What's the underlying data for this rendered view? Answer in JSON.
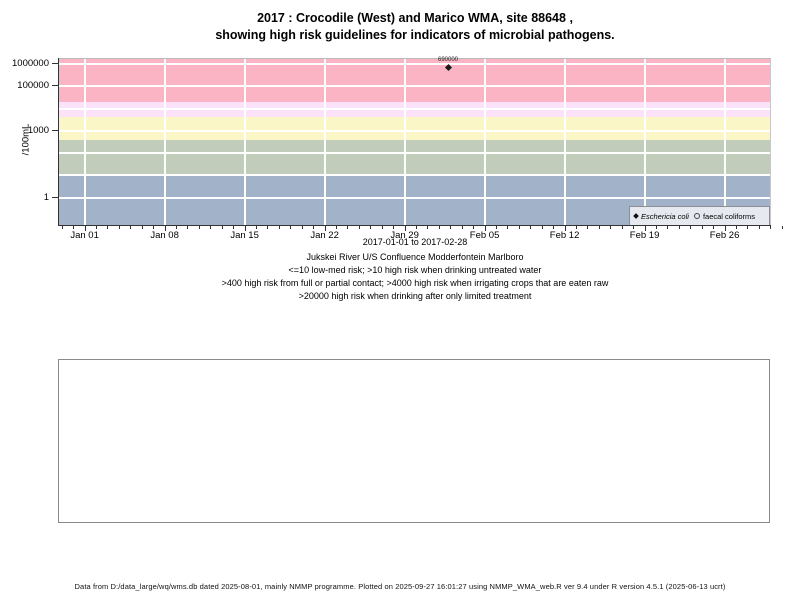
{
  "title": {
    "line1": "2017 : Crocodile (West) and Marico WMA, site 88648 ,",
    "line2": "showing high risk guidelines for indicators of microbial pathogens."
  },
  "chart_data": {
    "type": "scatter",
    "title": "2017 : Crocodile (West) and Marico WMA, site 88648 , showing high risk guidelines for indicators of microbial pathogens.",
    "y_axis": {
      "label": "/100mL",
      "scale": "log10",
      "ticks": [
        1,
        1000,
        100000,
        1000000
      ],
      "tick_labels": [
        "1",
        "1000",
        "100000",
        "1000000"
      ]
    },
    "x_axis": {
      "label": "2017-01-01 to 2017-02-28",
      "tick_labels": [
        "Jan 01",
        "Jan 08",
        "Jan 15",
        "Jan 22",
        "Jan 29",
        "Feb 05",
        "Feb 12",
        "Feb 19",
        "Feb 26"
      ],
      "minor_tick_interval_days": 1,
      "major_tick_interval_days": 7
    },
    "gridlines": {
      "horizontal_at": [
        1,
        10,
        100,
        1000,
        10000,
        100000,
        1000000
      ],
      "color": "#FFFFFF"
    },
    "guideline_bands": [
      {
        "range": "<=10",
        "color": "#A2B2C9"
      },
      {
        "range": "10-400",
        "color": "#C2CCBB"
      },
      {
        "range": "400-4000",
        "color": "#FAF6C6"
      },
      {
        "range": "4000-20000",
        "color": "#FBE2F8"
      },
      {
        "range": ">20000",
        "color": "#FBB4C4"
      }
    ],
    "band_thresholds": [
      10,
      400,
      4000,
      20000
    ],
    "series": [
      {
        "name": "Eschericia coli",
        "symbol": "filled-diamond",
        "points": [
          {
            "day_offset_from_jan01": 31.8,
            "value": 690000,
            "data_label": "690000"
          }
        ]
      },
      {
        "name": "faecal coliforms",
        "symbol": "open-circle",
        "points": []
      }
    ]
  },
  "legend": {
    "items": [
      {
        "symbol": "filled-diamond",
        "label": "Eschericia coli",
        "italic": true
      },
      {
        "symbol": "open-circle",
        "label": "faecal coliforms",
        "italic": false
      }
    ]
  },
  "captions": [
    "Jukskei River U/S Confluence Modderfontein Marlboro",
    "<=10 low-med risk; >10 high risk when drinking untreated water",
    ">400 high risk from full or partial contact; >4000 high risk when irrigating crops that are eaten raw",
    ">20000 high risk when drinking after only limited treatment"
  ],
  "footer": "Data from D:/data_large/wq/wms.db dated 2025-08-01, mainly NMMP programme. Plotted on 2025-09-27 16:01:27 using NMMP_WMA_web.R ver 9.4 under R version 4.5.1 (2025-06-13 ucrt)"
}
